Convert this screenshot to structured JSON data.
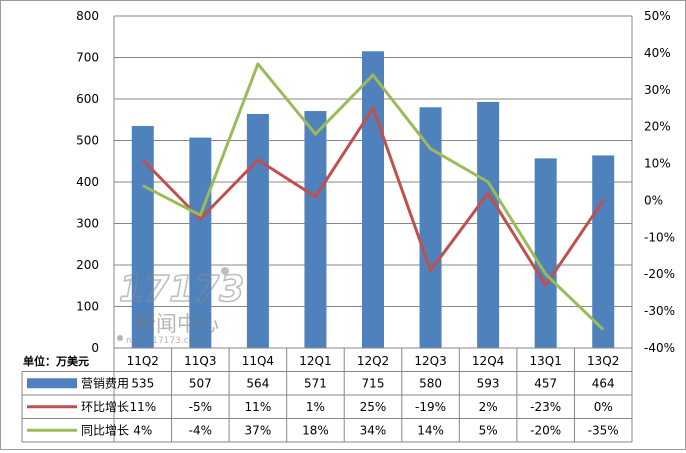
{
  "chart_data": {
    "type": "bar",
    "unit_label": "单位：万美元",
    "categories": [
      "11Q2",
      "11Q3",
      "11Q4",
      "12Q1",
      "12Q2",
      "12Q3",
      "12Q4",
      "13Q1",
      "13Q2"
    ],
    "bar_series": {
      "name": "营销费用",
      "values": [
        535,
        507,
        564,
        571,
        715,
        580,
        593,
        457,
        464
      ],
      "color": "#4F81BD"
    },
    "line_series": [
      {
        "name": "环比增长",
        "values": [
          11,
          -5,
          11,
          1,
          25,
          -19,
          2,
          -23,
          0
        ],
        "color": "#C0504D"
      },
      {
        "name": "同比增长",
        "values": [
          4,
          -4,
          37,
          18,
          34,
          14,
          5,
          -20,
          -35
        ],
        "color": "#9BBB59"
      }
    ],
    "y_left": {
      "min": 0,
      "max": 800,
      "ticks": [
        "0",
        "100",
        "200",
        "300",
        "400",
        "500",
        "600",
        "700",
        "800"
      ]
    },
    "y_right": {
      "min": -40,
      "max": 50,
      "ticks": [
        "-40%",
        "-30%",
        "-20%",
        "-10%",
        "0%",
        "10%",
        "20%",
        "30%",
        "40%",
        "50%"
      ]
    },
    "table": {
      "rows": [
        {
          "label": "营销费用",
          "cells": [
            "535",
            "507",
            "564",
            "571",
            "715",
            "580",
            "593",
            "457",
            "464"
          ]
        },
        {
          "label": "环比增长",
          "cells": [
            "11%",
            "-5%",
            "11%",
            "1%",
            "25%",
            "-19%",
            "2%",
            "-23%",
            "0%"
          ]
        },
        {
          "label": "同比增长",
          "cells": [
            "4%",
            "-4%",
            "37%",
            "18%",
            "34%",
            "14%",
            "5%",
            "-20%",
            "-35%"
          ]
        }
      ]
    },
    "grid": true,
    "legend": "data-table"
  },
  "watermark": {
    "logo_text": "17173",
    "name": "新闻中心",
    "url": "news.17173.com"
  }
}
